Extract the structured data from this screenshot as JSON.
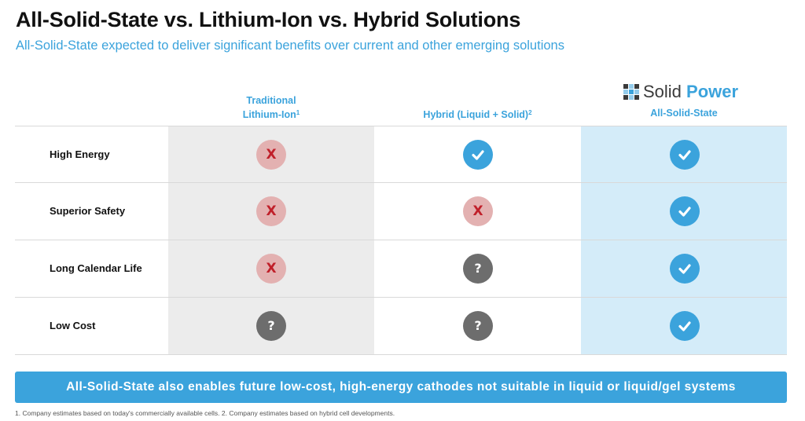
{
  "header": {
    "title": "All-Solid-State vs. Lithium-Ion vs. Hybrid Solutions",
    "subtitle": "All-Solid-State expected to deliver significant benefits over current and other emerging solutions"
  },
  "logo": {
    "brand_part1": "Solid",
    "brand_part2": "Power"
  },
  "columns": [
    {
      "line1": "Traditional",
      "line2": "Lithium-Ion",
      "sup": "1"
    },
    {
      "label": "Hybrid (Liquid + Solid)",
      "sup": "2"
    },
    {
      "label": "All-Solid-State"
    }
  ],
  "rows": [
    {
      "label": "High Energy",
      "values": [
        "x",
        "check",
        "check"
      ]
    },
    {
      "label": "Superior Safety",
      "values": [
        "x",
        "x",
        "check"
      ]
    },
    {
      "label": "Long Calendar Life",
      "values": [
        "x",
        "question",
        "check"
      ]
    },
    {
      "label": "Low Cost",
      "values": [
        "question",
        "question",
        "check"
      ]
    }
  ],
  "icons": {
    "x": {
      "symbol": "X",
      "color": "#c0202a",
      "bg": "#e3b1b1"
    },
    "question": {
      "symbol": "?",
      "color": "#ffffff",
      "bg": "#6d6d6d"
    },
    "check": {
      "color": "#ffffff",
      "bg": "#3ba3dc"
    }
  },
  "banner": {
    "text": "All-Solid-State also enables future low-cost, high-energy cathodes not suitable in liquid or liquid/gel systems"
  },
  "footnote": "1. Company estimates based on today's commercially available cells. 2. Company estimates based on hybrid cell developments.",
  "colors": {
    "accent": "#3ba3dc",
    "traditional_column_bg": "#ececec",
    "solid_state_column_bg": "#d4ecf9"
  }
}
